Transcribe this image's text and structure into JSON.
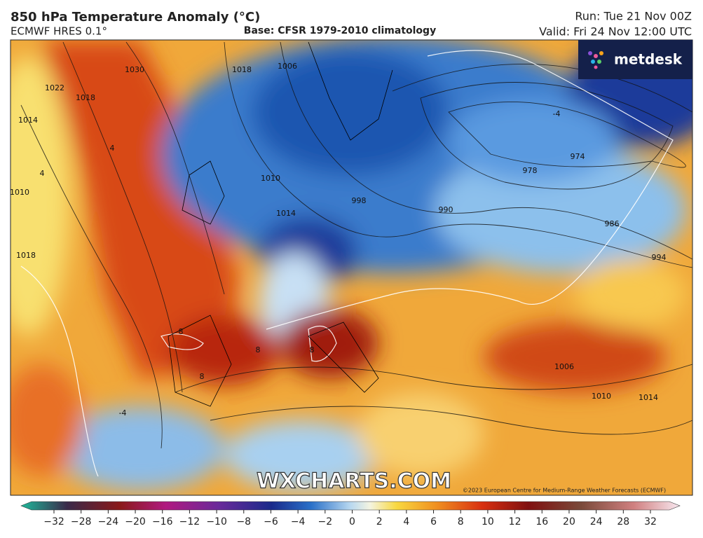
{
  "header": {
    "title": "850 hPa Temperature Anomaly (°C)",
    "model": "ECMWF HRES 0.1°",
    "base": "Base: CFSR 1979-2010 climatology",
    "run": "Run: Tue 21 Nov 00Z",
    "valid": "Valid: Fri 24 Nov 12:00 UTC"
  },
  "logo": "metdesk",
  "watermark": "WXCHARTS.COM",
  "copyright": "©2023 European Centre for Medium-Range Weather Forecasts (ECMWF)",
  "contour_labels": [
    "1030",
    "1022",
    "1018",
    "1014",
    "1010",
    "1018",
    "1018",
    "1006",
    "1010",
    "1014",
    "998",
    "990",
    "986",
    "994",
    "974",
    "978",
    "1006",
    "1010",
    "1014",
    "8",
    "8",
    "8",
    "8",
    "4",
    "4",
    "-4",
    "-4"
  ],
  "colorbar": {
    "ticks": [
      {
        "value": -32,
        "label": "−32"
      },
      {
        "value": -28,
        "label": "−28"
      },
      {
        "value": -24,
        "label": "−24"
      },
      {
        "value": -20,
        "label": "−20"
      },
      {
        "value": -16,
        "label": "−16"
      },
      {
        "value": -12,
        "label": "−12"
      },
      {
        "value": -10,
        "label": "−10"
      },
      {
        "value": -8,
        "label": "−8"
      },
      {
        "value": -6,
        "label": "−6"
      },
      {
        "value": -4,
        "label": "−4"
      },
      {
        "value": -2,
        "label": "−2"
      },
      0,
      2,
      4,
      6,
      8,
      10,
      12,
      16,
      20,
      24,
      28,
      32
    ]
  }
}
